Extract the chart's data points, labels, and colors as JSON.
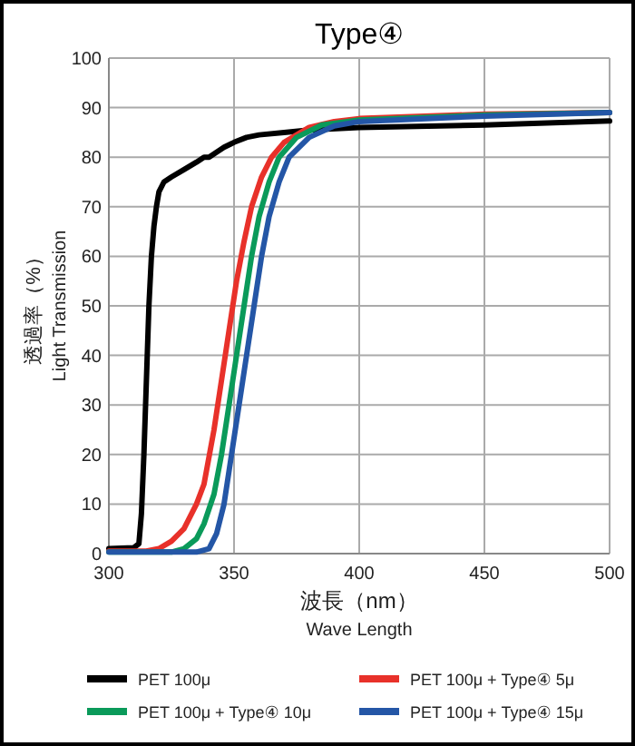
{
  "chart_data": {
    "type": "line",
    "title": "Type④",
    "xlabel": "波長（nm）\nWave Length",
    "ylabel": "透過率（%）\nLight Transmission",
    "xlim": [
      300,
      500
    ],
    "xticks": [
      300,
      350,
      400,
      450,
      500
    ],
    "ylim": [
      0,
      100
    ],
    "yticks": [
      0,
      10,
      20,
      30,
      40,
      50,
      60,
      70,
      80,
      90,
      100
    ],
    "grid": true,
    "legend": "bottom",
    "marker": "none",
    "line_style": "solid",
    "series": [
      {
        "name": "PET 100μ",
        "color": "#000000",
        "x": [
          300,
          310,
          312,
          313,
          314,
          315,
          316,
          317,
          318,
          319,
          320,
          322,
          325,
          330,
          335,
          338,
          340,
          343,
          346,
          350,
          355,
          360,
          370,
          380,
          400,
          450,
          500
        ],
        "values": [
          1,
          1.2,
          2,
          8,
          20,
          35,
          50,
          60,
          66,
          70,
          73,
          75,
          76,
          77.5,
          79,
          80,
          80,
          81,
          82,
          83,
          84,
          84.5,
          85,
          85.5,
          86,
          86.5,
          87.3
        ]
      },
      {
        "name": "PET 100μ + Type④ 5μ",
        "color": "#e8312a",
        "x": [
          300,
          315,
          320,
          325,
          330,
          335,
          338,
          342,
          345,
          348,
          351,
          354,
          357,
          361,
          365,
          370,
          380,
          390,
          400,
          450,
          500
        ],
        "values": [
          0.5,
          0.5,
          1,
          2.5,
          5,
          10,
          14,
          25,
          35,
          45,
          55,
          63,
          70,
          76,
          80,
          83,
          86,
          87.2,
          87.8,
          88.7,
          89
        ]
      },
      {
        "name": "PET 100μ + Type④ 10μ",
        "color": "#0a9a5a",
        "x": [
          300,
          325,
          330,
          335,
          338,
          342,
          345,
          348,
          351,
          354,
          357,
          360,
          364,
          368,
          375,
          385,
          400,
          450,
          500
        ],
        "values": [
          0.3,
          0.3,
          1,
          3,
          6,
          12,
          20,
          30,
          40,
          50,
          60,
          68,
          75,
          80,
          84,
          86.5,
          87.5,
          88.5,
          89
        ]
      },
      {
        "name": "PET 100μ + Type④ 15μ",
        "color": "#2456a6",
        "x": [
          300,
          335,
          340,
          343,
          346,
          349,
          352,
          355,
          358,
          361,
          364,
          368,
          372,
          380,
          390,
          400,
          450,
          500
        ],
        "values": [
          0.3,
          0.3,
          1,
          4,
          10,
          20,
          30,
          40,
          50,
          60,
          68,
          75,
          80,
          84,
          86.3,
          87.2,
          88.3,
          89
        ]
      }
    ]
  }
}
